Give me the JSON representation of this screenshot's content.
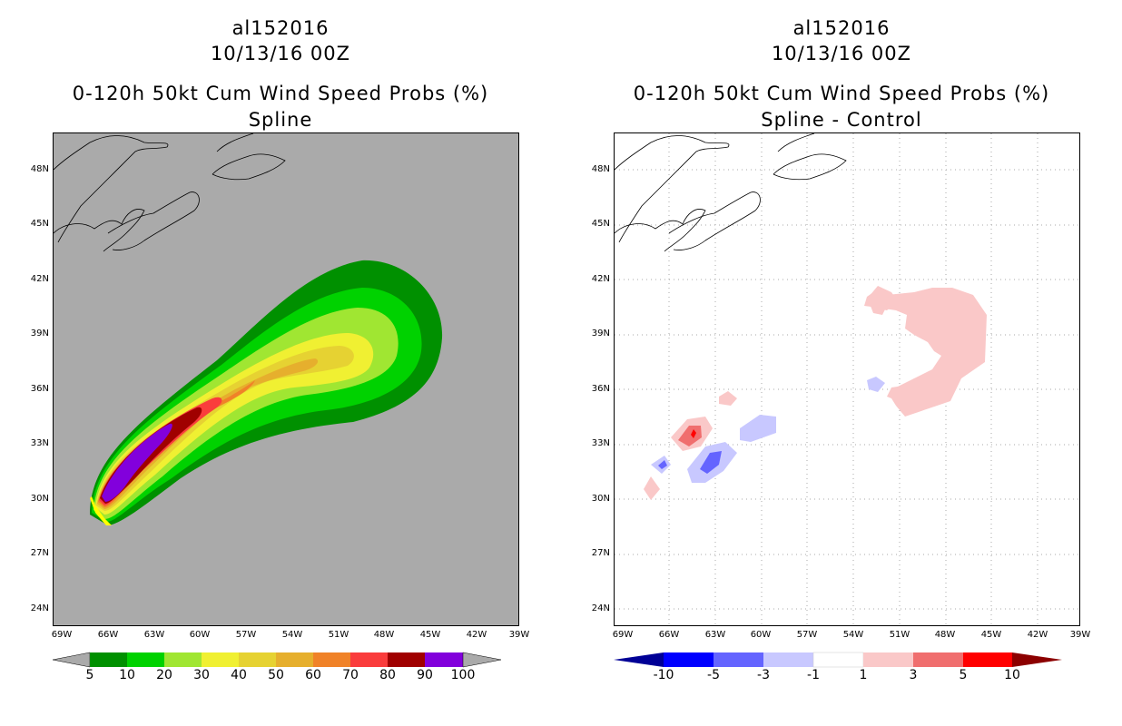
{
  "left": {
    "storm_id": "al152016",
    "datetime": "10/13/16 00Z",
    "title": "0-120h 50kt Cum Wind Speed Probs (%)",
    "subtitle": "Spline",
    "colorbar_labels": [
      "5",
      "10",
      "20",
      "30",
      "40",
      "50",
      "60",
      "70",
      "80",
      "90",
      "100"
    ],
    "colorbar_colors": [
      "#009000",
      "#00d200",
      "#a0e632",
      "#f0f032",
      "#e6d232",
      "#e6af2d",
      "#f08228",
      "#fa3c3c",
      "#a00000",
      "#8200dc"
    ],
    "background_color": "#aaaaaa"
  },
  "right": {
    "storm_id": "al152016",
    "datetime": "10/13/16 00Z",
    "title": "0-120h 50kt Cum Wind Speed Probs (%)",
    "subtitle": "Spline - Control",
    "colorbar_labels": [
      "-10",
      "-5",
      "-3",
      "-1",
      "1",
      "3",
      "5",
      "10"
    ],
    "colorbar_colors": [
      "#0000ff",
      "#6464ff",
      "#c8c8ff",
      "#ffffff",
      "#fac8c8",
      "#f06e6e",
      "#ff0000"
    ],
    "background_color": "#ffffff"
  },
  "axes": {
    "lat_labels": [
      "48N",
      "45N",
      "42N",
      "39N",
      "36N",
      "33N",
      "30N",
      "27N",
      "24N"
    ],
    "lon_labels": [
      "69W",
      "66W",
      "63W",
      "60W",
      "57W",
      "54W",
      "51W",
      "48W",
      "45W",
      "42W",
      "39W"
    ]
  }
}
